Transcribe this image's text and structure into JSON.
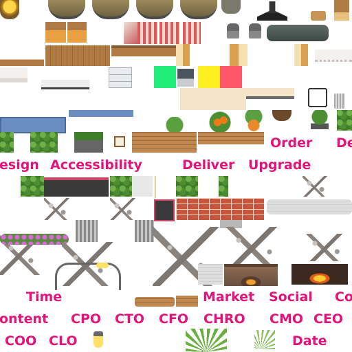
{
  "labels": {
    "order": "Order",
    "de_cut": "De",
    "design_cut": "esign",
    "accessibility": "Accessibility",
    "deliver": "Deliver",
    "upgrade": "Upgrade",
    "time": "Time",
    "market": "Market",
    "social": "Social",
    "co_cut": "Co",
    "content_cut": "ontent",
    "cpo": "CPO",
    "cto": "CTO",
    "cfo": "CFO",
    "chro": "CHRO",
    "cmo": "CMO",
    "ceo": "CEO",
    "coo": "COO",
    "clo": "CLO",
    "date": "Date"
  },
  "colors": {
    "label": "#e0147a",
    "green_swatch": "#22ee77",
    "yellow_swatch": "#ffee22",
    "red_swatch": "#ff5566",
    "wood": "#b07a45",
    "brick": "#c8553d"
  }
}
